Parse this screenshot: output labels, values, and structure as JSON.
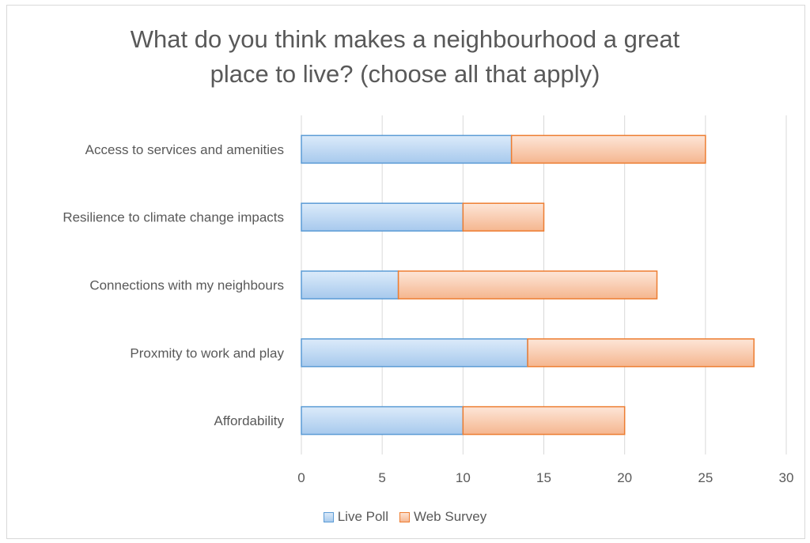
{
  "chart_data": {
    "type": "bar",
    "orientation": "horizontal",
    "stacked": true,
    "title": "What do you think makes a neighbourhood a great\nplace to live? (choose all that apply)",
    "categories": [
      "Access to services and amenities",
      "Resilience to climate change impacts",
      "Connections with my neighbours",
      "Proxmity to work and play",
      "Affordability"
    ],
    "series": [
      {
        "name": "Live Poll",
        "values": [
          13,
          10,
          6,
          14,
          10
        ],
        "color": "#5b9bd5"
      },
      {
        "name": "Web Survey",
        "values": [
          12,
          5,
          16,
          14,
          10
        ],
        "color": "#ed7d31"
      }
    ],
    "xlim": [
      0,
      30
    ],
    "xticks": [
      "0",
      "5",
      "10",
      "15",
      "20",
      "25",
      "30"
    ],
    "grid": true,
    "legend": "bottom"
  }
}
